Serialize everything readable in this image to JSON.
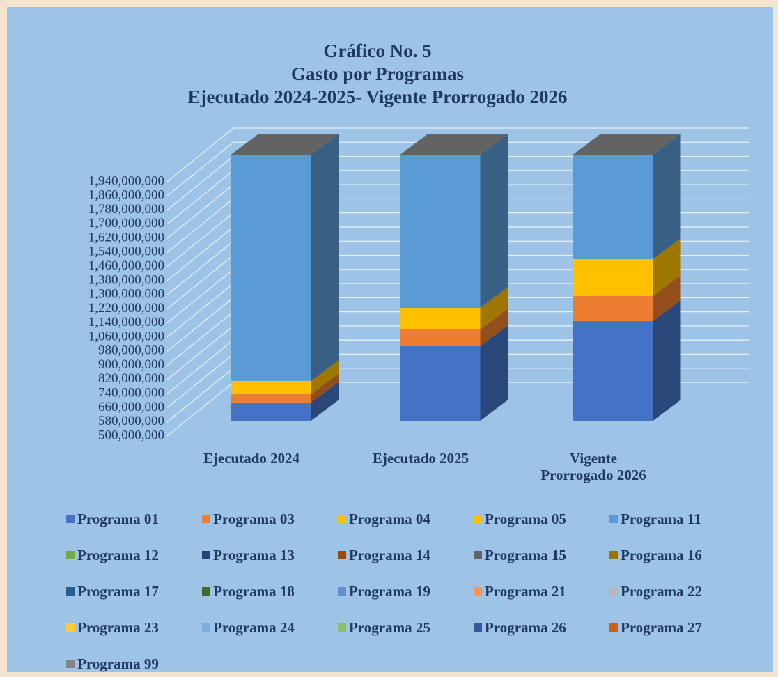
{
  "chart_data": {
    "type": "bar3d_stacked",
    "title_lines": [
      "Gráfico No. 5",
      "Gasto por Programas",
      "Ejecutado 2024-2025- Vigente Prorrogado 2026"
    ],
    "categories": [
      "Ejecutado 2024",
      "Ejecutado 2025",
      "Vigente Prorrogado  2026"
    ],
    "ylim": [
      500000000,
      2020000000
    ],
    "yticks": [
      {
        "value": 500000000,
        "label": "500,000,000"
      },
      {
        "value": 580000000,
        "label": "580,000,000"
      },
      {
        "value": 660000000,
        "label": "660,000,000"
      },
      {
        "value": 740000000,
        "label": "740,000,000"
      },
      {
        "value": 820000000,
        "label": "820,000,000"
      },
      {
        "value": 900000000,
        "label": "900,000,000"
      },
      {
        "value": 980000000,
        "label": "980,000,000"
      },
      {
        "value": 1060000000,
        "label": "1,060,000,000"
      },
      {
        "value": 1140000000,
        "label": "1,140,000,000"
      },
      {
        "value": 1220000000,
        "label": "1,220,000,000"
      },
      {
        "value": 1300000000,
        "label": "1,300,000,000"
      },
      {
        "value": 1380000000,
        "label": "1,380,000,000"
      },
      {
        "value": 1460000000,
        "label": "1,460,000,000"
      },
      {
        "value": 1540000000,
        "label": "1,540,000,000"
      },
      {
        "value": 1620000000,
        "label": "1,620,000,000"
      },
      {
        "value": 1700000000,
        "label": "1,700,000,000"
      },
      {
        "value": 1780000000,
        "label": "1,780,000,000"
      },
      {
        "value": 1860000000,
        "label": "1,860,000,000"
      },
      {
        "value": 1940000000,
        "label": "1,940,000,000"
      }
    ],
    "grid": true,
    "series": [
      {
        "name": "Programa 01",
        "color": "#4472c4",
        "values": [
          603000000,
          922000000,
          1064000000
        ]
      },
      {
        "name": "Programa 03",
        "color": "#ed7d31",
        "values": [
          47000000,
          95000000,
          142000000
        ]
      },
      {
        "name": "Programa 04",
        "color": "#ffc000",
        "values": [
          75000000,
          122000000,
          209000000
        ]
      },
      {
        "name": "Programa 05",
        "color": "#ffc000",
        "values": [
          0,
          0,
          0
        ]
      },
      {
        "name": "Programa 11",
        "color": "#5b9bd5",
        "values": [
          1282000000,
          868000000,
          592000000
        ]
      },
      {
        "name": "Programa 12",
        "color": "#70ad47",
        "values": [
          0,
          0,
          0
        ]
      },
      {
        "name": "Programa 13",
        "color": "#264478",
        "values": [
          0,
          0,
          0
        ]
      },
      {
        "name": "Programa 14",
        "color": "#9e480e",
        "values": [
          0,
          0,
          0
        ]
      },
      {
        "name": "Programa 15",
        "color": "#636363",
        "values": [
          0,
          0,
          0
        ]
      },
      {
        "name": "Programa 16",
        "color": "#997300",
        "values": [
          0,
          0,
          0
        ]
      },
      {
        "name": "Programa 17",
        "color": "#255e91",
        "values": [
          0,
          0,
          0
        ]
      },
      {
        "name": "Programa 18",
        "color": "#43682b",
        "values": [
          0,
          0,
          0
        ]
      },
      {
        "name": "Programa 19",
        "color": "#698ed0",
        "values": [
          0,
          0,
          0
        ]
      },
      {
        "name": "Programa 21",
        "color": "#f1975a",
        "values": [
          0,
          0,
          0
        ]
      },
      {
        "name": "Programa 22",
        "color": "#b7b7b7",
        "values": [
          0,
          0,
          0
        ]
      },
      {
        "name": "Programa 23",
        "color": "#ffcd33",
        "values": [
          0,
          0,
          0
        ]
      },
      {
        "name": "Programa 24",
        "color": "#7cafdd",
        "values": [
          0,
          0,
          0
        ]
      },
      {
        "name": "Programa 25",
        "color": "#8cc168",
        "values": [
          0,
          0,
          0
        ]
      },
      {
        "name": "Programa 26",
        "color": "#335aa1",
        "values": [
          0,
          0,
          0
        ]
      },
      {
        "name": "Programa 27",
        "color": "#d26012",
        "values": [
          0,
          0,
          0
        ]
      },
      {
        "name": "Programa 99",
        "color": "#848484",
        "values": [
          0,
          0,
          0
        ]
      }
    ]
  }
}
